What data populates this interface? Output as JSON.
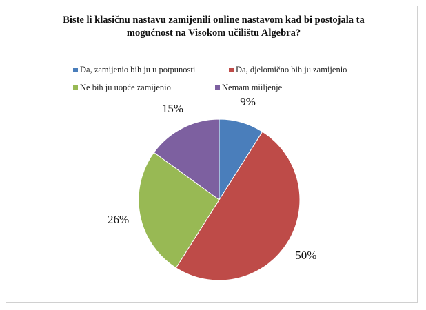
{
  "chart_data": {
    "type": "pie",
    "title": "Biste li klasičnu nastavu zamijenili online nastavom  kad bi postojala  ta mogućnost na Visokom učilištu Algebra?",
    "categories": [
      "Da, zamijenio bih ju u potpunosti",
      "Da, djelomično bih ju zamijenio",
      "Ne bih ju uopće zamijenio",
      "Nemam miiljenje"
    ],
    "values": [
      9,
      50,
      26,
      15
    ],
    "value_labels": [
      "9%",
      "50%",
      "26%",
      "15%"
    ],
    "colors": [
      "#4a7ebb",
      "#be4b48",
      "#98b954",
      "#7d60a0"
    ],
    "legend_position": "top"
  }
}
